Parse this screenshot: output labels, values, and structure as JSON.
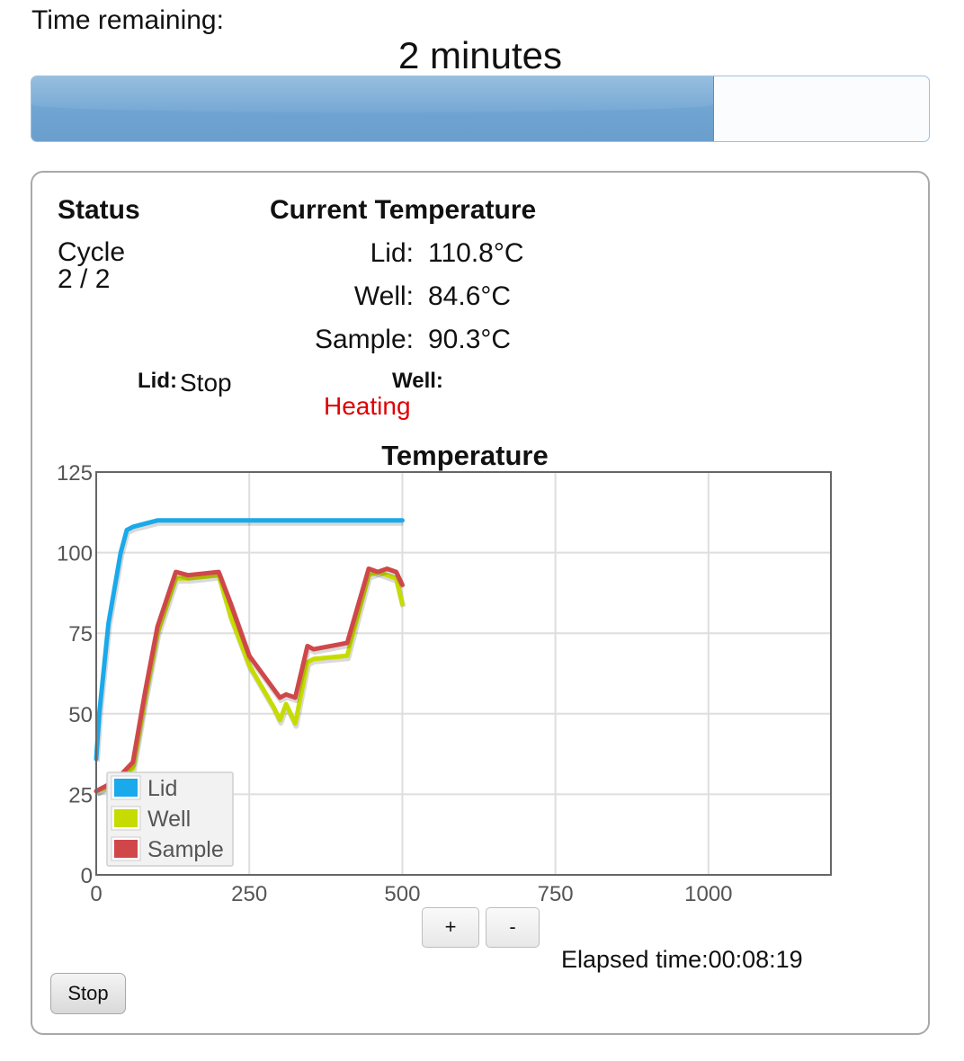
{
  "time_remaining": {
    "label": "Time remaining:",
    "value": "2 minutes",
    "progress_fraction": 0.76
  },
  "status": {
    "heading": "Status",
    "cycle_label": "Cycle",
    "cycle_value": "2 / 2"
  },
  "current_temperature": {
    "heading": "Current Temperature",
    "rows": [
      {
        "label": "Lid:",
        "value": "110.8°C"
      },
      {
        "label": "Well:",
        "value": "84.6°C"
      },
      {
        "label": "Sample:",
        "value": "90.3°C"
      }
    ]
  },
  "heater_state": {
    "lid_label": "Lid:",
    "lid_value": "Stop",
    "well_label": "Well:",
    "well_value": "Heating",
    "well_value_color": "#e00000"
  },
  "chart_data": {
    "type": "line",
    "title": "Temperature",
    "xlim": [
      0,
      1200
    ],
    "ylim": [
      0,
      125
    ],
    "x_ticks": [
      0,
      250,
      500,
      750,
      1000
    ],
    "y_ticks": [
      0,
      25,
      50,
      75,
      100,
      125
    ],
    "grid": true,
    "legend_position": "bottom-left",
    "series": [
      {
        "name": "Lid",
        "color": "#1aa9ea",
        "x": [
          0,
          5,
          20,
          40,
          50,
          60,
          80,
          100,
          130,
          150,
          200,
          250,
          300,
          350,
          400,
          450,
          500
        ],
        "y": [
          36,
          50,
          78,
          100,
          107,
          108,
          109,
          110,
          110,
          110,
          110,
          110,
          110,
          110,
          110,
          110,
          110
        ]
      },
      {
        "name": "Well",
        "color": "#c6dc00",
        "x": [
          0,
          30,
          60,
          80,
          100,
          130,
          150,
          200,
          220,
          250,
          290,
          300,
          310,
          325,
          345,
          355,
          410,
          445,
          460,
          475,
          490,
          500
        ],
        "y": [
          26,
          28,
          33,
          55,
          75,
          92,
          92,
          93,
          80,
          65,
          52,
          48,
          53,
          47,
          66,
          67,
          68,
          93,
          94,
          93,
          92,
          84
        ]
      },
      {
        "name": "Sample",
        "color": "#d0474a",
        "x": [
          0,
          30,
          60,
          80,
          100,
          130,
          150,
          200,
          220,
          250,
          300,
          310,
          325,
          345,
          355,
          410,
          445,
          460,
          475,
          490,
          500
        ],
        "y": [
          26,
          29,
          35,
          57,
          77,
          94,
          93,
          94,
          84,
          68,
          55,
          56,
          55,
          71,
          70,
          72,
          95,
          94,
          95,
          94,
          90
        ]
      }
    ]
  },
  "controls": {
    "zoom_in_label": "+",
    "zoom_out_label": "-",
    "stop_label": "Stop"
  },
  "elapsed": {
    "label": "Elapsed time:",
    "value": "00:08:19"
  }
}
